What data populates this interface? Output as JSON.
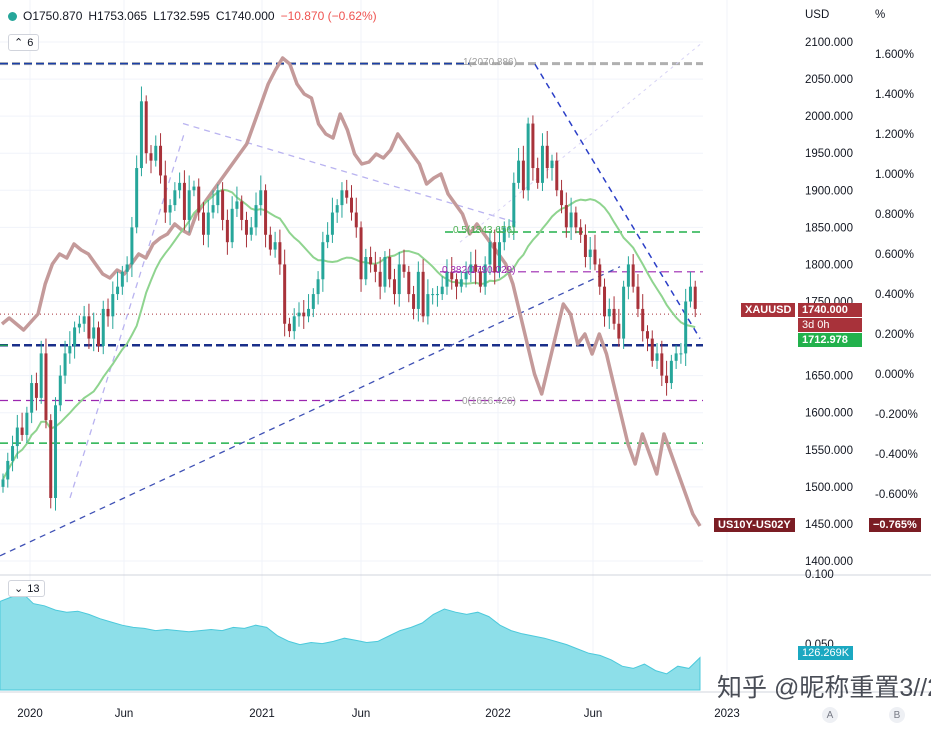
{
  "header": {
    "open": "O1750.870",
    "high": "H1753.065",
    "low": "L1732.595",
    "close": "C1740.000",
    "change": "−10.870 (−0.62%)",
    "currency": "USD",
    "percent": "%"
  },
  "indicator_buttons": {
    "main": "6",
    "volume": "13"
  },
  "fib_labels": [
    "1(2070.886)",
    "0.5(1843.656)",
    "0.382(1790.029)",
    "0(1616.426)"
  ],
  "tags": {
    "xauusd_name": "XAUUSD",
    "xauusd_price": "1740.000",
    "countdown": "3d 0h",
    "ma_value": "1712.978",
    "spread_name": "US10Y-US02Y",
    "spread_value": "−0.765%",
    "volume_value": "126.269K"
  },
  "colors": {
    "up": "#26a69a",
    "down": "#ef5350",
    "candle": "#a8323a",
    "ma": "#8fd48f",
    "spread": "#c49a9a",
    "volume": "#8ddfe9"
  },
  "watermark": "知乎 @昵称重置3//2",
  "axis_buttons": [
    "A",
    "B"
  ],
  "chart_data": [
    {
      "type": "candlestick",
      "series_name": "XAUUSD",
      "x_ticks": [
        "2020",
        "Jun",
        "2021",
        "Jun",
        "2022",
        "Jun",
        "2023"
      ],
      "price_ticks": [
        "2100.000",
        "2050.000",
        "2000.000",
        "1950.000",
        "1900.000",
        "1850.000",
        "1800.000",
        "1750.000",
        "1700.000",
        "1650.000",
        "1600.000",
        "1550.000",
        "1500.000",
        "1450.000",
        "1400.000"
      ],
      "percent_ticks": [
        "1.600%",
        "1.400%",
        "1.200%",
        "1.000%",
        "0.800%",
        "0.600%",
        "0.400%",
        "0.200%",
        "0.000%",
        "-0.200%",
        "-0.400%",
        "-0.600%"
      ],
      "ylim": [
        1395,
        2128
      ],
      "weekly_close": [
        1510,
        1535,
        1555,
        1580,
        1570,
        1600,
        1640,
        1620,
        1680,
        1590,
        1485,
        1610,
        1650,
        1680,
        1690,
        1715,
        1720,
        1730,
        1700,
        1715,
        1690,
        1740,
        1730,
        1760,
        1770,
        1790,
        1800,
        1850,
        1930,
        2020,
        1950,
        1940,
        1960,
        1920,
        1870,
        1880,
        1900,
        1910,
        1860,
        1900,
        1905,
        1870,
        1840,
        1870,
        1880,
        1900,
        1860,
        1830,
        1875,
        1885,
        1860,
        1840,
        1850,
        1880,
        1900,
        1840,
        1820,
        1830,
        1800,
        1720,
        1710,
        1730,
        1735,
        1730,
        1740,
        1760,
        1780,
        1830,
        1840,
        1870,
        1880,
        1900,
        1890,
        1870,
        1850,
        1780,
        1810,
        1800,
        1790,
        1770,
        1810,
        1780,
        1760,
        1800,
        1790,
        1760,
        1740,
        1790,
        1730,
        1760,
        1760,
        1760,
        1770,
        1790,
        1780,
        1770,
        1780,
        1790,
        1800,
        1790,
        1770,
        1800,
        1830,
        1790,
        1830,
        1850,
        1850,
        1910,
        1940,
        1900,
        1990,
        1930,
        1910,
        1960,
        1930,
        1940,
        1900,
        1880,
        1850,
        1870,
        1850,
        1840,
        1810,
        1820,
        1800,
        1770,
        1730,
        1740,
        1720,
        1700,
        1770,
        1800,
        1770,
        1740,
        1710,
        1700,
        1670,
        1680,
        1650,
        1640,
        1670,
        1680,
        1680,
        1750,
        1770,
        1740
      ],
      "ma_label": "1712.978"
    },
    {
      "type": "line",
      "series_name": "US10Y-US02Y",
      "y_unit": "%",
      "last_value": -0.765,
      "values": [
        0.25,
        0.28,
        0.25,
        0.22,
        0.26,
        0.3,
        0.45,
        0.55,
        0.6,
        0.58,
        0.65,
        0.62,
        0.6,
        0.55,
        0.5,
        0.48,
        0.52,
        0.5,
        0.55,
        0.6,
        0.58,
        0.65,
        0.68,
        0.7,
        0.75,
        0.72,
        0.7,
        0.8,
        0.85,
        0.9,
        0.95,
        1.0,
        1.05,
        1.1,
        1.15,
        1.25,
        1.35,
        1.45,
        1.52,
        1.58,
        1.55,
        1.45,
        1.4,
        1.38,
        1.25,
        1.2,
        1.18,
        1.3,
        1.22,
        1.1,
        1.05,
        1.06,
        1.1,
        1.08,
        1.12,
        1.2,
        1.15,
        1.1,
        1.05,
        0.95,
        0.98,
        1.0,
        0.9,
        0.85,
        0.8,
        0.7,
        0.75,
        0.7,
        0.65,
        0.6,
        0.55,
        0.45,
        0.3,
        0.15,
        0.0,
        -0.1,
        0.05,
        0.2,
        0.35,
        0.3,
        0.15,
        0.2,
        0.1,
        0.2,
        0.1,
        -0.05,
        -0.2,
        -0.35,
        -0.45,
        -0.3,
        -0.4,
        -0.5,
        -0.3,
        -0.4,
        -0.5,
        -0.6,
        -0.7,
        -0.76
      ]
    },
    {
      "type": "area",
      "series_name": "Volume",
      "ylabel_ticks": [
        "0.100",
        "0.050"
      ],
      "last_value": "126.269K",
      "values": [
        0.82,
        0.86,
        0.9,
        0.8,
        0.78,
        0.74,
        0.72,
        0.73,
        0.7,
        0.66,
        0.63,
        0.6,
        0.58,
        0.57,
        0.55,
        0.56,
        0.55,
        0.54,
        0.55,
        0.56,
        0.55,
        0.58,
        0.57,
        0.6,
        0.58,
        0.5,
        0.45,
        0.42,
        0.44,
        0.43,
        0.45,
        0.48,
        0.46,
        0.44,
        0.45,
        0.5,
        0.55,
        0.58,
        0.62,
        0.7,
        0.75,
        0.72,
        0.7,
        0.72,
        0.68,
        0.6,
        0.55,
        0.52,
        0.5,
        0.48,
        0.45,
        0.42,
        0.38,
        0.34,
        0.32,
        0.28,
        0.22,
        0.2,
        0.24,
        0.18,
        0.15,
        0.22,
        0.2,
        0.3
      ]
    }
  ]
}
